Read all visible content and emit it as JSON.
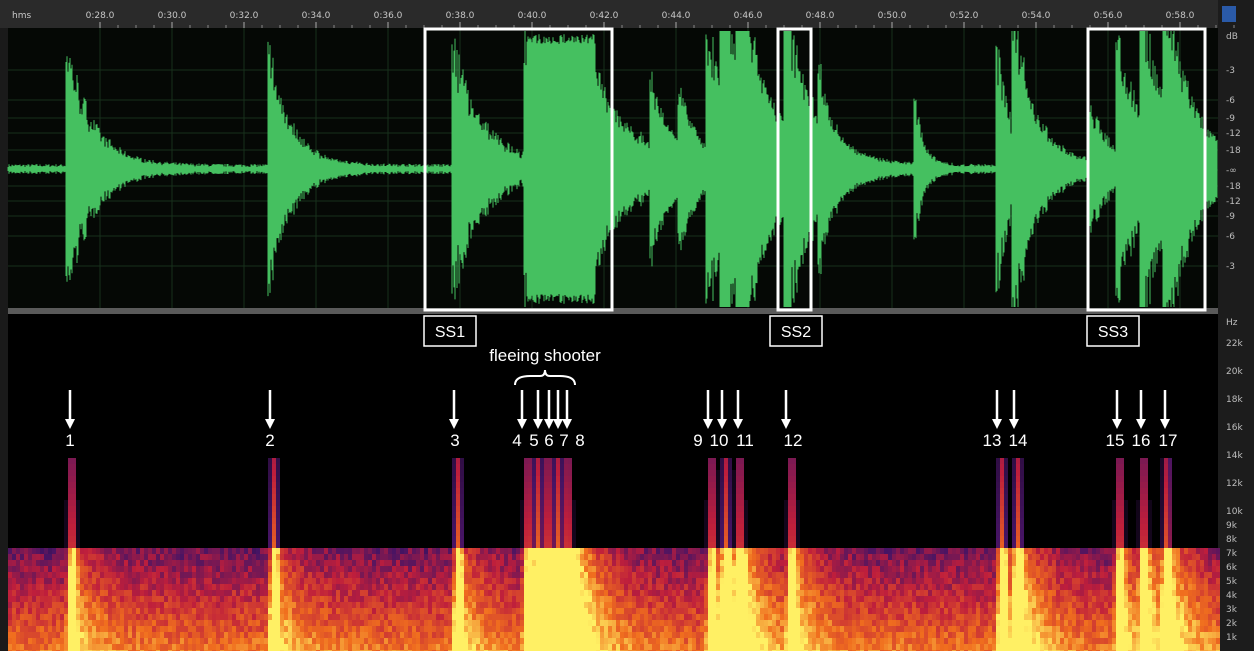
{
  "ruler": {
    "unit": "hms",
    "times": [
      "0:28.0",
      "0:30.0",
      "0:32.0",
      "0:34.0",
      "0:36.0",
      "0:38.0",
      "0:40.0",
      "0:42.0",
      "0:44.0",
      "0:46.0",
      "0:48.0",
      "0:50.0",
      "0:52.0",
      "0:54.0",
      "0:56.0",
      "0:58.0"
    ]
  },
  "db_scale": {
    "unit": "dB",
    "labels": [
      "-3",
      "-6",
      "-9",
      "-12",
      "-18",
      "-∞",
      "-18",
      "-12",
      "-9",
      "-6",
      "-3"
    ]
  },
  "hz_scale": {
    "unit": "Hz",
    "labels": [
      "22k",
      "20k",
      "18k",
      "16k",
      "14k",
      "12k",
      "10k",
      "9k",
      "8k",
      "7k",
      "6k",
      "5k",
      "4k",
      "3k",
      "2k",
      "1k"
    ]
  },
  "selections": [
    "SS1",
    "SS2",
    "SS3"
  ],
  "annotation": "fleeing shooter",
  "shots": [
    "1",
    "2",
    "3",
    "4",
    "5",
    "6",
    "7",
    "8",
    "9",
    "10",
    "11",
    "12",
    "13",
    "14",
    "15",
    "16",
    "17"
  ]
}
